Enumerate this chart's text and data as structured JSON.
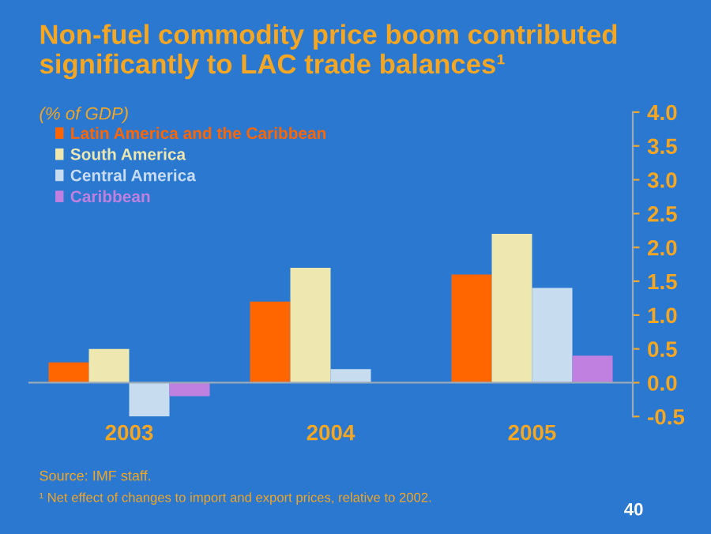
{
  "chart_data": {
    "type": "bar",
    "title": "Non-fuel commodity price boom contributed significantly to LAC trade balances¹",
    "subtitle": "(% of GDP)",
    "categories": [
      "2003",
      "2004",
      "2005"
    ],
    "series": [
      {
        "name": "Latin America and the Caribbean",
        "color": "#ff6600",
        "values": [
          0.3,
          1.2,
          1.6
        ]
      },
      {
        "name": "South America",
        "color": "#eee8b0",
        "values": [
          0.5,
          1.7,
          2.2
        ]
      },
      {
        "name": "Central America",
        "color": "#c8dcf0",
        "values": [
          -0.5,
          0.2,
          1.4
        ]
      },
      {
        "name": "Caribbean",
        "color": "#c080e0",
        "values": [
          -0.2,
          null,
          0.4
        ]
      }
    ],
    "ylim": [
      -0.5,
      4.0
    ],
    "yticks": [
      {
        "value": -0.5,
        "label": "-0.5"
      },
      {
        "value": 0,
        "label": "0.0"
      },
      {
        "value": 0.5,
        "label": "0.5"
      },
      {
        "value": 1,
        "label": "1.0"
      },
      {
        "value": 1.5,
        "label": "1.5"
      },
      {
        "value": 2,
        "label": "2.0"
      },
      {
        "value": 2.5,
        "label": "2.5"
      },
      {
        "value": 3,
        "label": "3.0"
      },
      {
        "value": 3.5,
        "label": "3.5"
      },
      {
        "value": 4,
        "label": "4.0"
      }
    ],
    "grid": false,
    "legend": "top left",
    "annotations": [
      "Source: IMF staff.",
      "¹ Net effect of changes to import and export prices, relative to 2002.",
      "40"
    ]
  }
}
